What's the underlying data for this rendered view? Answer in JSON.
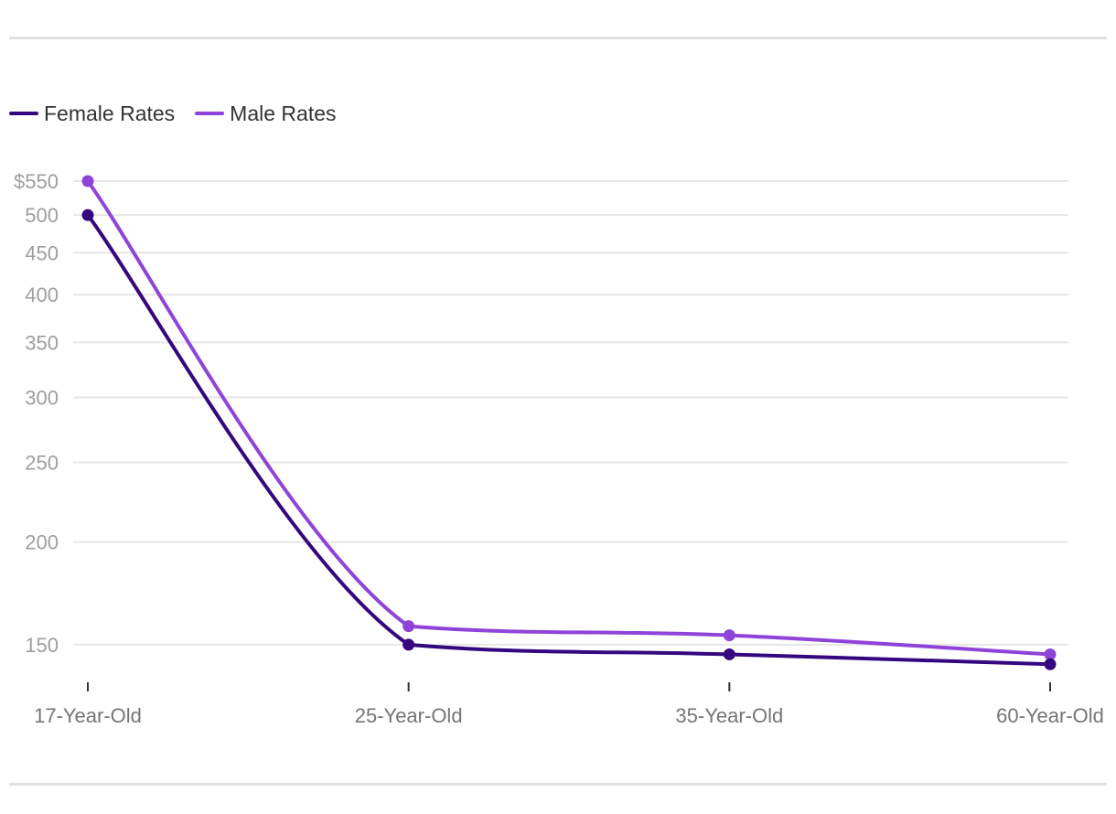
{
  "chart_data": {
    "type": "line",
    "title": "",
    "xlabel": "",
    "ylabel": "",
    "y_scale": "log",
    "y_prefix": "$",
    "ylim": [
      135,
      550
    ],
    "y_ticks": [
      150,
      200,
      250,
      300,
      350,
      400,
      450,
      500,
      550
    ],
    "grid": true,
    "legend_position": "top-left",
    "categories": [
      "17-Year-Old",
      "25-Year-Old",
      "35-Year-Old",
      "60-Year-Old"
    ],
    "series": [
      {
        "name": "Female Rates",
        "color": "#35077f",
        "values": [
          500,
          150,
          146,
          142
        ]
      },
      {
        "name": "Male Rates",
        "color": "#8f44d9",
        "values": [
          550,
          158,
          154,
          146
        ]
      }
    ]
  }
}
